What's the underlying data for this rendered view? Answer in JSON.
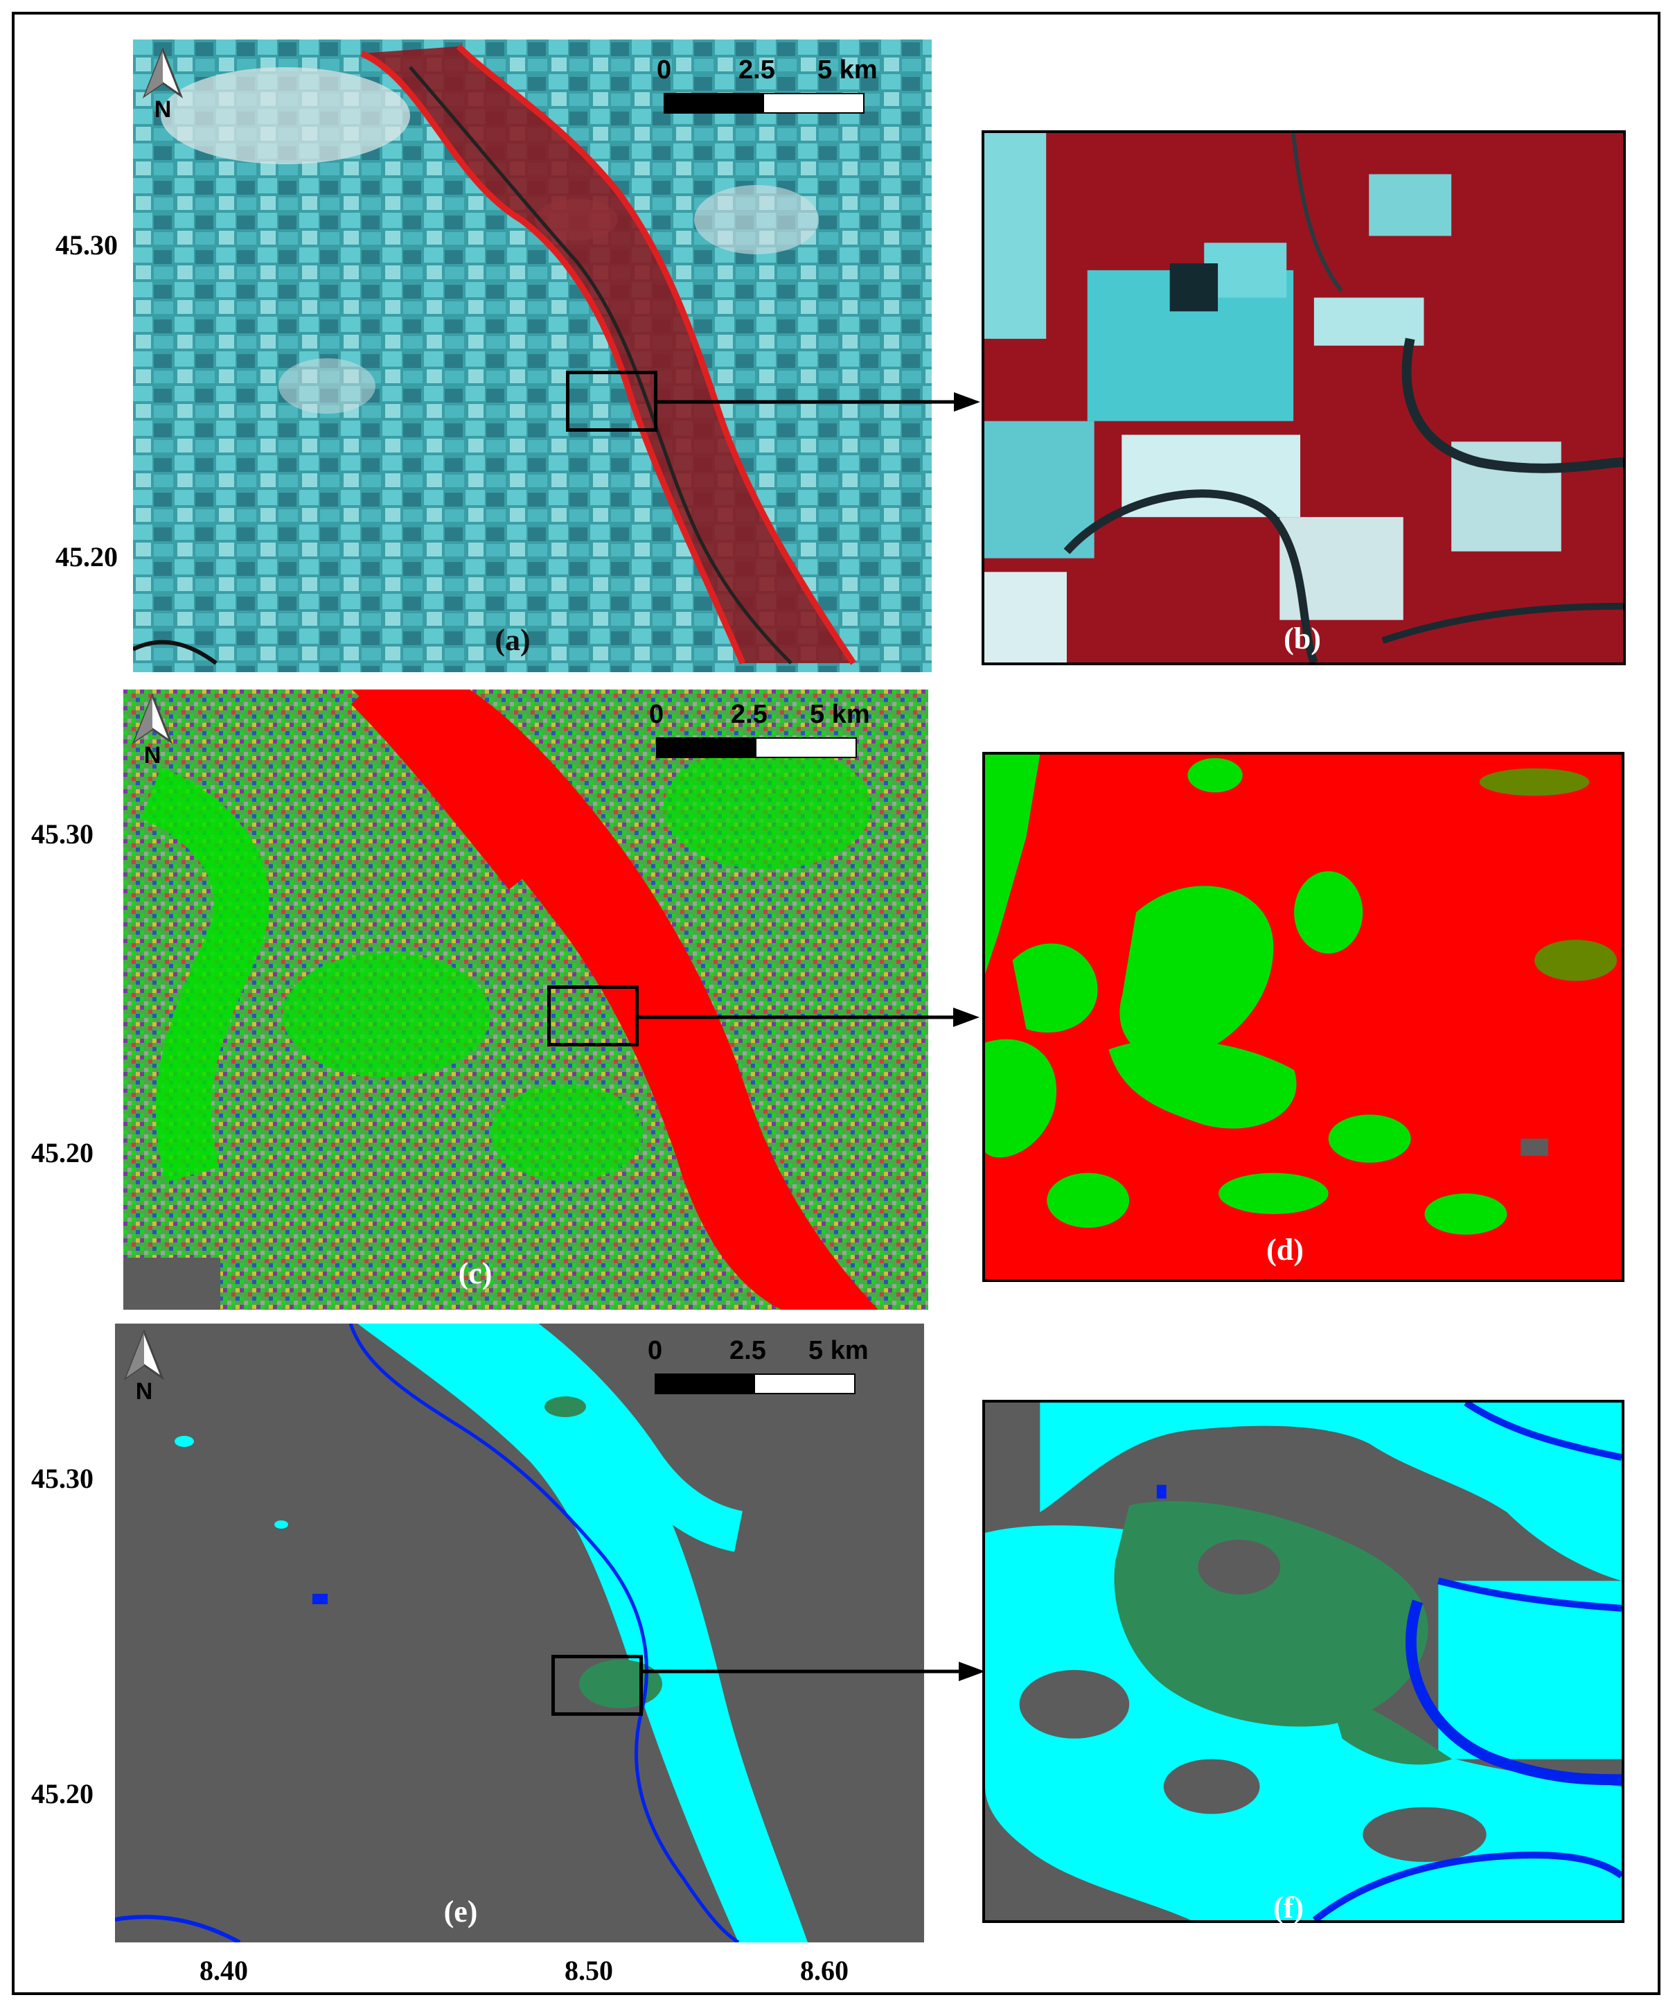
{
  "latitude_labels": [
    "45.30",
    "45.20"
  ],
  "longitude_labels": [
    "8.40",
    "8.50",
    "8.60"
  ],
  "scale_bar": {
    "ticks": [
      "0",
      "2.5",
      "5 km"
    ]
  },
  "north_label": "N",
  "panels": [
    {
      "id": "a",
      "label": "(a)"
    },
    {
      "id": "b",
      "label": "(b)"
    },
    {
      "id": "c",
      "label": "(c)"
    },
    {
      "id": "d",
      "label": "(d)"
    },
    {
      "id": "e",
      "label": "(e)"
    },
    {
      "id": "f",
      "label": "(f)"
    }
  ],
  "colors": {
    "rgb_cyan": "#3fb3b8",
    "rgb_red": "#b0101a",
    "flood_outline": "#e02020",
    "class_red": "#ff0000",
    "class_green": "#00e000",
    "background_gray": "#5c5c5c",
    "flooded_cyan": "#00ffff",
    "vegetation_green": "#2e8b57",
    "river_blue": "#0022ee"
  }
}
